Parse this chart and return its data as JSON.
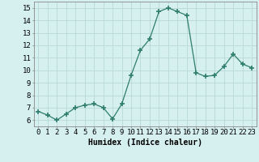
{
  "x": [
    0,
    1,
    2,
    3,
    4,
    5,
    6,
    7,
    8,
    9,
    10,
    11,
    12,
    13,
    14,
    15,
    16,
    17,
    18,
    19,
    20,
    21,
    22,
    23
  ],
  "y": [
    6.7,
    6.4,
    6.0,
    6.5,
    7.0,
    7.2,
    7.3,
    7.0,
    6.1,
    7.3,
    9.6,
    11.6,
    12.5,
    14.7,
    15.0,
    14.7,
    14.4,
    9.8,
    9.5,
    9.6,
    10.3,
    11.3,
    10.5,
    10.2
  ],
  "line_color": "#2e7d6e",
  "marker": "+",
  "marker_size": 4,
  "marker_linewidth": 1.2,
  "background_color": "#d6f0f0",
  "grid_color": "#b8d8d8",
  "xlabel": "Humidex (Indice chaleur)",
  "xlabel_fontsize": 7,
  "xlim": [
    -0.5,
    23.5
  ],
  "ylim": [
    5.5,
    15.5
  ],
  "yticks": [
    6,
    7,
    8,
    9,
    10,
    11,
    12,
    13,
    14,
    15
  ],
  "xticks": [
    0,
    1,
    2,
    3,
    4,
    5,
    6,
    7,
    8,
    9,
    10,
    11,
    12,
    13,
    14,
    15,
    16,
    17,
    18,
    19,
    20,
    21,
    22,
    23
  ],
  "tick_fontsize": 6.5
}
